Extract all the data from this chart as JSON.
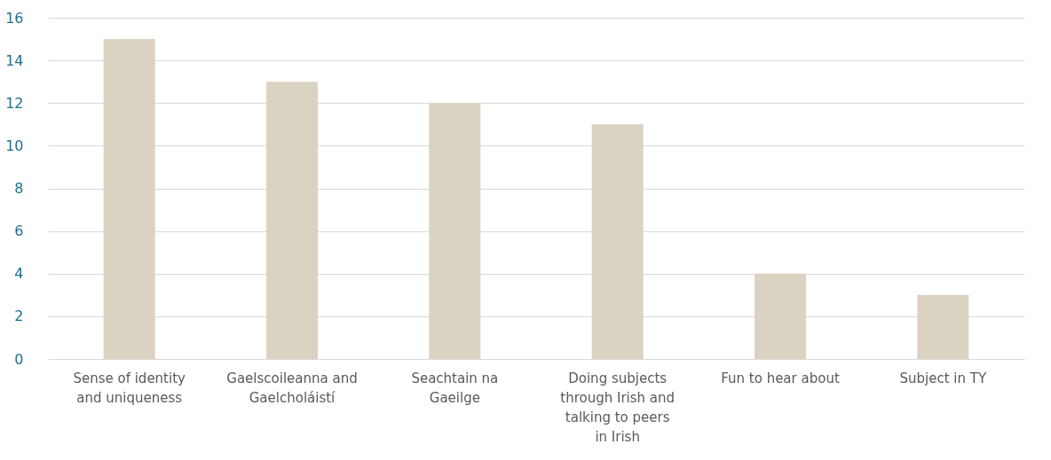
{
  "chart_data": {
    "type": "bar",
    "categories": [
      "Sense of identity and uniqueness",
      "Gaelscoileanna and Gaelcholáistí",
      "Seachtain na Gaeilge",
      "Doing subjects through Irish and talking to peers in Irish",
      "Fun to hear about",
      "Subject in TY"
    ],
    "values": [
      15,
      13,
      12,
      11,
      4,
      3
    ],
    "color": "#dbd3c2",
    "ylim": [
      0,
      16
    ],
    "yticks": [
      0,
      2,
      4,
      6,
      8,
      10,
      12,
      14,
      16
    ],
    "grid": "y"
  }
}
